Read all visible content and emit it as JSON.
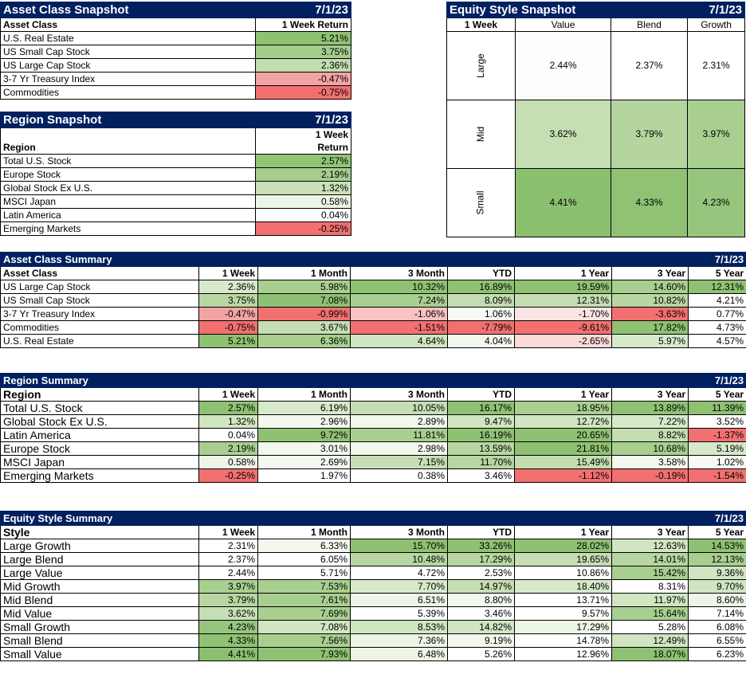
{
  "asset_snapshot": {
    "title": "Asset Class Snapshot",
    "date": "7/1/23",
    "col_label": "Asset Class",
    "col_value": "1 Week Return",
    "rows": [
      {
        "label": "U.S. Real Estate",
        "value": "5.21%",
        "color": "#8fc173"
      },
      {
        "label": "US Small Cap Stock",
        "value": "3.75%",
        "color": "#a5cd8d"
      },
      {
        "label": "US Large Cap Stock",
        "value": "2.36%",
        "color": "#c3ddb1"
      },
      {
        "label": "3-7 Yr Treasury Index",
        "value": "-0.47%",
        "color": "#f4a3a3"
      },
      {
        "label": "Commodities",
        "value": "-0.75%",
        "color": "#f27070"
      }
    ]
  },
  "region_snapshot": {
    "title": "Region Snapshot",
    "date": "7/1/23",
    "col_label": "Region",
    "col_value_line1": "1 Week",
    "col_value_line2": "Return",
    "rows": [
      {
        "label": "Total U.S. Stock",
        "value": "2.57%",
        "color": "#92c478"
      },
      {
        "label": "Europe Stock",
        "value": "2.19%",
        "color": "#a5cd8d"
      },
      {
        "label": "Global Stock Ex U.S.",
        "value": "1.32%",
        "color": "#c9e0b8"
      },
      {
        "label": "MSCI Japan",
        "value": "0.58%",
        "color": "#edf5e6"
      },
      {
        "label": "Latin America",
        "value": "0.04%",
        "color": "#ffffff"
      },
      {
        "label": "Emerging Markets",
        "value": "-0.25%",
        "color": "#f27070"
      }
    ]
  },
  "equity_snapshot": {
    "title": "Equity Style Snapshot",
    "date": "7/1/23",
    "corner": "1 Week",
    "columns": [
      "Value",
      "Blend",
      "Growth"
    ],
    "rows": [
      {
        "label": "Large",
        "cells": [
          {
            "value": "2.44%",
            "color": "#fdfefc"
          },
          {
            "value": "2.37%",
            "color": "#ffffff"
          },
          {
            "value": "2.31%",
            "color": "#ffffff"
          }
        ]
      },
      {
        "label": "Mid",
        "cells": [
          {
            "value": "3.62%",
            "color": "#c6deb4"
          },
          {
            "value": "3.79%",
            "color": "#b5d59f"
          },
          {
            "value": "3.97%",
            "color": "#a8cf90"
          }
        ]
      },
      {
        "label": "Small",
        "cells": [
          {
            "value": "4.41%",
            "color": "#8bc06f"
          },
          {
            "value": "4.33%",
            "color": "#8fc273"
          },
          {
            "value": "4.23%",
            "color": "#97c57d"
          }
        ]
      }
    ]
  },
  "asset_summary": {
    "title": "Asset Class Summary",
    "date": "7/1/23",
    "first_header": "Asset Class",
    "headers": [
      "1 Week",
      "1 Month",
      "3 Month",
      "YTD",
      "1 Year",
      "3 Year",
      "5 Year"
    ],
    "rows": [
      {
        "label": "US Large Cap Stock",
        "cells": [
          [
            "2.36%",
            "#d7e9ca"
          ],
          [
            "5.98%",
            "#a8cf90"
          ],
          [
            "10.32%",
            "#8fc173"
          ],
          [
            "16.89%",
            "#8fc173"
          ],
          [
            "19.59%",
            "#8fc173"
          ],
          [
            "14.60%",
            "#a8cf90"
          ],
          [
            "12.31%",
            "#8fc173"
          ]
        ]
      },
      {
        "label": "US Small Cap Stock",
        "cells": [
          [
            "3.75%",
            "#b9d7a3"
          ],
          [
            "7.08%",
            "#8fc173"
          ],
          [
            "7.24%",
            "#a8cf90"
          ],
          [
            "8.09%",
            "#c3ddb1"
          ],
          [
            "12.31%",
            "#c3ddb1"
          ],
          [
            "10.82%",
            "#b7d6a1"
          ],
          [
            "4.21%",
            "#ffffff"
          ]
        ]
      },
      {
        "label": "3-7 Yr Treasury Index",
        "cells": [
          [
            "-0.47%",
            "#f4a3a3"
          ],
          [
            "-0.99%",
            "#f27070"
          ],
          [
            "-1.06%",
            "#f7c3c3"
          ],
          [
            "1.06%",
            "#f7faf4"
          ],
          [
            "-1.70%",
            "#fde4e4"
          ],
          [
            "-3.63%",
            "#f27070"
          ],
          [
            "0.77%",
            "#ffffff"
          ]
        ]
      },
      {
        "label": "Commodities",
        "cells": [
          [
            "-0.75%",
            "#f27070"
          ],
          [
            "3.67%",
            "#c6deb4"
          ],
          [
            "-1.51%",
            "#f27070"
          ],
          [
            "-7.79%",
            "#f27070"
          ],
          [
            "-9.61%",
            "#f27070"
          ],
          [
            "17.82%",
            "#8fc173"
          ],
          [
            "4.73%",
            "#ffffff"
          ]
        ]
      },
      {
        "label": "U.S. Real Estate",
        "cells": [
          [
            "5.21%",
            "#8fc173"
          ],
          [
            "6.36%",
            "#a8cf90"
          ],
          [
            "4.64%",
            "#d0e5c1"
          ],
          [
            "4.04%",
            "#f3f8ef"
          ],
          [
            "-2.65%",
            "#fbdada"
          ],
          [
            "5.97%",
            "#d7e9ca"
          ],
          [
            "4.57%",
            "#ffffff"
          ]
        ]
      }
    ]
  },
  "region_summary": {
    "title": "Region Summary",
    "date": "7/1/23",
    "first_header": "Region",
    "headers": [
      "1 Week",
      "1 Month",
      "3 Month",
      "YTD",
      "1 Year",
      "3 Year",
      "5 Year"
    ],
    "rows": [
      {
        "label": "Total U.S. Stock",
        "cells": [
          [
            "2.57%",
            "#8fc173"
          ],
          [
            "6.19%",
            "#d7e9ca"
          ],
          [
            "10.05%",
            "#c6deb4"
          ],
          [
            "16.17%",
            "#8fc173"
          ],
          [
            "18.95%",
            "#a8cf90"
          ],
          [
            "13.89%",
            "#8fc173"
          ],
          [
            "11.39%",
            "#8fc173"
          ]
        ]
      },
      {
        "label": "Global Stock Ex U.S.",
        "cells": [
          [
            "1.32%",
            "#d0e5c1"
          ],
          [
            "2.96%",
            "#f3f8ef"
          ],
          [
            "2.89%",
            "#f3f8ef"
          ],
          [
            "9.47%",
            "#d0e5c1"
          ],
          [
            "12.72%",
            "#d0e5c1"
          ],
          [
            "7.22%",
            "#d7e9ca"
          ],
          [
            "3.52%",
            "#ffffff"
          ]
        ]
      },
      {
        "label": "Latin America",
        "cells": [
          [
            "0.04%",
            "#ffffff"
          ],
          [
            "9.72%",
            "#8fc173"
          ],
          [
            "11.81%",
            "#a8cf90"
          ],
          [
            "16.19%",
            "#8fc173"
          ],
          [
            "20.65%",
            "#8fc173"
          ],
          [
            "8.82%",
            "#c3ddb1"
          ],
          [
            "-1.37%",
            "#f27070"
          ]
        ]
      },
      {
        "label": "Europe Stock",
        "cells": [
          [
            "2.19%",
            "#a8cf90"
          ],
          [
            "3.01%",
            "#f3f8ef"
          ],
          [
            "2.98%",
            "#f3f8ef"
          ],
          [
            "13.59%",
            "#b7d6a1"
          ],
          [
            "21.81%",
            "#8fc173"
          ],
          [
            "10.68%",
            "#a8cf90"
          ],
          [
            "5.19%",
            "#d7e9ca"
          ]
        ]
      },
      {
        "label": "MSCI Japan",
        "cells": [
          [
            "0.58%",
            "#edf5e6"
          ],
          [
            "2.69%",
            "#f3f8ef"
          ],
          [
            "7.15%",
            "#c6deb4"
          ],
          [
            "11.70%",
            "#b7d6a1"
          ],
          [
            "15.49%",
            "#c3ddb1"
          ],
          [
            "3.58%",
            "#f3f8ef"
          ],
          [
            "1.02%",
            "#f7faf4"
          ]
        ]
      },
      {
        "label": "Emerging Markets",
        "cells": [
          [
            "-0.25%",
            "#f27070"
          ],
          [
            "1.97%",
            "#ffffff"
          ],
          [
            "0.38%",
            "#ffffff"
          ],
          [
            "3.46%",
            "#ffffff"
          ],
          [
            "-1.12%",
            "#f27070"
          ],
          [
            "-0.19%",
            "#f27070"
          ],
          [
            "-1.54%",
            "#f27070"
          ]
        ]
      }
    ]
  },
  "equity_summary": {
    "title": "Equity Style Summary",
    "date": "7/1/23",
    "first_header": "Style",
    "headers": [
      "1 Week",
      "1 Month",
      "3 Month",
      "YTD",
      "1 Year",
      "3 Year",
      "5 Year"
    ],
    "rows": [
      {
        "label": "Large Growth",
        "cells": [
          [
            "2.31%",
            "#ffffff"
          ],
          [
            "6.33%",
            "#f3f8ef"
          ],
          [
            "15.70%",
            "#8fc173"
          ],
          [
            "33.26%",
            "#8fc173"
          ],
          [
            "28.02%",
            "#8fc173"
          ],
          [
            "12.63%",
            "#d0e5c1"
          ],
          [
            "14.53%",
            "#8fc173"
          ]
        ]
      },
      {
        "label": "Large Blend",
        "cells": [
          [
            "2.37%",
            "#ffffff"
          ],
          [
            "6.05%",
            "#ffffff"
          ],
          [
            "10.48%",
            "#b7d6a1"
          ],
          [
            "17.29%",
            "#b7d6a1"
          ],
          [
            "19.65%",
            "#c6deb4"
          ],
          [
            "14.01%",
            "#b7d6a1"
          ],
          [
            "12.13%",
            "#a8cf90"
          ]
        ]
      },
      {
        "label": "Large Value",
        "cells": [
          [
            "2.44%",
            "#ffffff"
          ],
          [
            "5.71%",
            "#ffffff"
          ],
          [
            "4.72%",
            "#ffffff"
          ],
          [
            "2.53%",
            "#ffffff"
          ],
          [
            "10.86%",
            "#ffffff"
          ],
          [
            "15.42%",
            "#a8cf90"
          ],
          [
            "9.36%",
            "#d0e5c1"
          ]
        ]
      },
      {
        "label": "Mid Growth",
        "cells": [
          [
            "3.97%",
            "#a8cf90"
          ],
          [
            "7.53%",
            "#a8cf90"
          ],
          [
            "7.70%",
            "#d7e9ca"
          ],
          [
            "14.97%",
            "#c6deb4"
          ],
          [
            "18.40%",
            "#d7e9ca"
          ],
          [
            "8.31%",
            "#ffffff"
          ],
          [
            "9.70%",
            "#d0e5c1"
          ]
        ]
      },
      {
        "label": "Mid Blend",
        "cells": [
          [
            "3.79%",
            "#b7d6a1"
          ],
          [
            "7.61%",
            "#a8cf90"
          ],
          [
            "6.51%",
            "#edf5e6"
          ],
          [
            "8.80%",
            "#f3f8ef"
          ],
          [
            "13.71%",
            "#ffffff"
          ],
          [
            "11.97%",
            "#d0e5c1"
          ],
          [
            "8.60%",
            "#edf5e6"
          ]
        ]
      },
      {
        "label": "Mid Value",
        "cells": [
          [
            "3.62%",
            "#c6deb4"
          ],
          [
            "7.69%",
            "#a8cf90"
          ],
          [
            "5.39%",
            "#ffffff"
          ],
          [
            "3.46%",
            "#ffffff"
          ],
          [
            "9.57%",
            "#ffffff"
          ],
          [
            "15.64%",
            "#a8cf90"
          ],
          [
            "7.14%",
            "#ffffff"
          ]
        ]
      },
      {
        "label": "Small Growth",
        "cells": [
          [
            "4.23%",
            "#97c57d"
          ],
          [
            "7.08%",
            "#d0e5c1"
          ],
          [
            "8.53%",
            "#d0e5c1"
          ],
          [
            "14.82%",
            "#d0e5c1"
          ],
          [
            "17.29%",
            "#edf5e6"
          ],
          [
            "5.28%",
            "#ffffff"
          ],
          [
            "6.08%",
            "#ffffff"
          ]
        ]
      },
      {
        "label": "Small Blend",
        "cells": [
          [
            "4.33%",
            "#8fc273"
          ],
          [
            "7.56%",
            "#a8cf90"
          ],
          [
            "7.36%",
            "#edf5e6"
          ],
          [
            "9.19%",
            "#f3f8ef"
          ],
          [
            "14.78%",
            "#ffffff"
          ],
          [
            "12.49%",
            "#d0e5c1"
          ],
          [
            "6.55%",
            "#ffffff"
          ]
        ]
      },
      {
        "label": "Small Value",
        "cells": [
          [
            "4.41%",
            "#8bc06f"
          ],
          [
            "7.93%",
            "#8fc173"
          ],
          [
            "6.48%",
            "#edf5e6"
          ],
          [
            "5.26%",
            "#ffffff"
          ],
          [
            "12.96%",
            "#ffffff"
          ],
          [
            "18.07%",
            "#8fc173"
          ],
          [
            "6.23%",
            "#ffffff"
          ]
        ]
      }
    ]
  }
}
